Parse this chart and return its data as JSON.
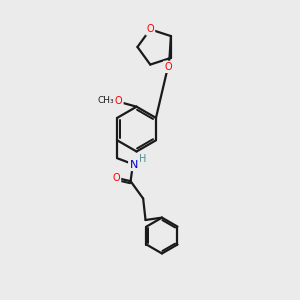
{
  "bg_color": "#ebebeb",
  "bond_color": "#1a1a1a",
  "oxygen_color": "#ff0000",
  "nitrogen_color": "#0000cc",
  "h_color": "#4a9090",
  "line_width": 1.6,
  "figsize": [
    3.0,
    3.0
  ],
  "dpi": 100,
  "xlim": [
    0,
    10
  ],
  "ylim": [
    0,
    10
  ]
}
